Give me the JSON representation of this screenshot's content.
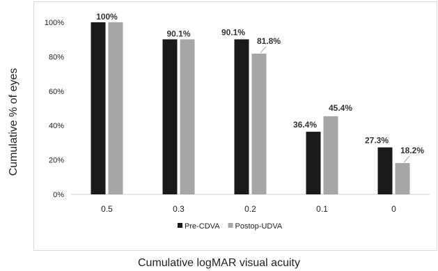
{
  "chart_data": {
    "type": "bar",
    "xlabel": "Cumulative logMAR visual acuity",
    "ylabel": "Cumulative % of eyes",
    "ylim": [
      0,
      100
    ],
    "yticks": [
      "0%",
      "20%",
      "40%",
      "60%",
      "80%",
      "100%"
    ],
    "ytick_values": [
      0,
      20,
      40,
      60,
      80,
      100
    ],
    "categories": [
      "0.5",
      "0.3",
      "0.2",
      "0.1",
      "0"
    ],
    "series": [
      {
        "name": "Pre-CDVA",
        "color": "#1a1a1a",
        "values": [
          100,
          90.1,
          90.1,
          36.4,
          27.3
        ],
        "labels": [
          "100%",
          "90.1%",
          "90.1%",
          "36.4%",
          "27.3%"
        ]
      },
      {
        "name": "Postop-UDVA",
        "color": "#a6a6a6",
        "values": [
          100,
          90.1,
          81.8,
          45.4,
          18.2
        ],
        "labels": [
          "",
          "",
          "81.8%",
          "45.4%",
          "18.2%"
        ]
      }
    ],
    "legend_position": "bottom",
    "grid": false
  }
}
